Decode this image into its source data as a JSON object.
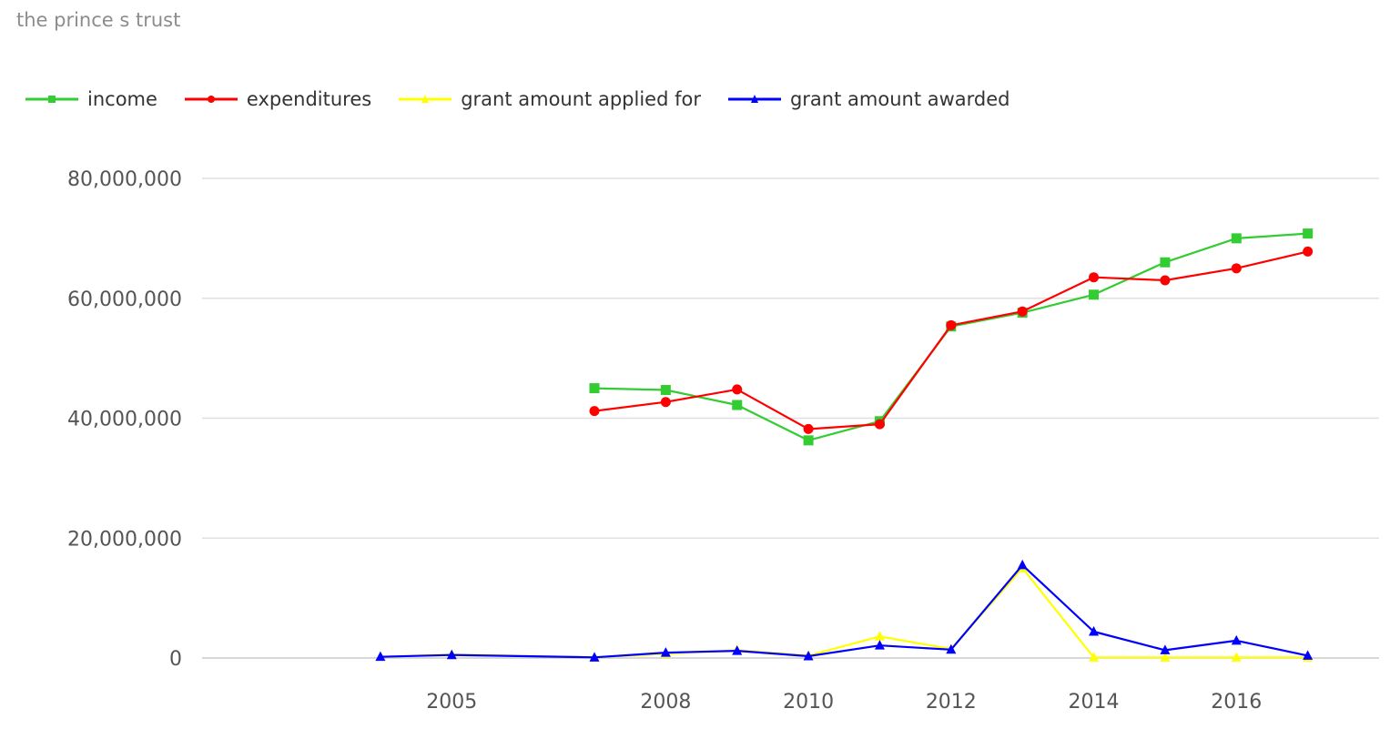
{
  "chart_data": {
    "type": "line",
    "title": "the prince s trust",
    "xlabel": "",
    "ylabel": "",
    "x": [
      2004,
      2005,
      2007,
      2008,
      2009,
      2010,
      2011,
      2012,
      2013,
      2014,
      2015,
      2016,
      2017
    ],
    "x_ticks": [
      2005,
      2008,
      2010,
      2012,
      2014,
      2016
    ],
    "y_ticks": [
      0,
      20000000,
      40000000,
      60000000,
      80000000
    ],
    "y_tick_labels": [
      "0",
      "20,000,000",
      "40,000,000",
      "60,000,000",
      "80,000,000"
    ],
    "xlim": [
      2001.5,
      2018
    ],
    "ylim": [
      0,
      80000000
    ],
    "grid": true,
    "legend_position": "top-left",
    "series": [
      {
        "name": "income",
        "color": "#33cc33",
        "marker": "square",
        "values": [
          null,
          null,
          45000000,
          44700000,
          42200000,
          36300000,
          39500000,
          55300000,
          57600000,
          60600000,
          66000000,
          70000000,
          70800000
        ]
      },
      {
        "name": "expenditures",
        "color": "#ff0000",
        "marker": "circle",
        "values": [
          null,
          null,
          41200000,
          42700000,
          44800000,
          38200000,
          39000000,
          55500000,
          57800000,
          63500000,
          63000000,
          65000000,
          67800000
        ]
      },
      {
        "name": "grant amount applied for",
        "color": "#ffff00",
        "marker": "triangle",
        "values": [
          200000,
          600000,
          100000,
          700000,
          1300000,
          400000,
          3600000,
          1500000,
          15000000,
          100000,
          100000,
          100000,
          100000
        ]
      },
      {
        "name": "grant amount awarded",
        "color": "#0000ff",
        "marker": "triangle",
        "values": [
          200000,
          500000,
          100000,
          900000,
          1200000,
          300000,
          2100000,
          1400000,
          15500000,
          4400000,
          1300000,
          2900000,
          400000
        ]
      }
    ]
  }
}
